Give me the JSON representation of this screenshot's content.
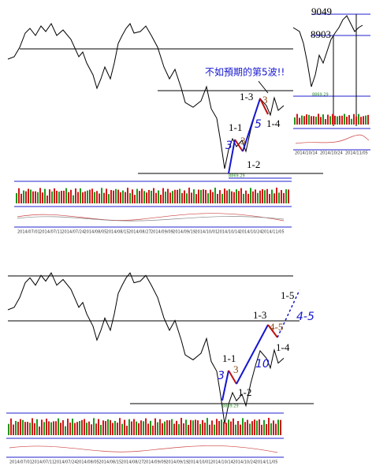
{
  "top_chart": {
    "note": "不如預期的第5波!!",
    "labels": [
      "1-3",
      "3",
      "1-1",
      "3",
      "3",
      "5",
      "1-4",
      "1-2"
    ],
    "low": "8869.29",
    "dates": [
      "2014/07/01",
      "2014/07/11",
      "2014/07/24",
      "2014/08/05",
      "2014/08/15",
      "2014/08/27",
      "2014/09/09",
      "2014/09/19",
      "2014/10/01",
      "2014/10/14",
      "2014/10/24",
      "2014/11/05"
    ]
  },
  "inset": {
    "high": "9049",
    "level": "8903",
    "low": "8869.29",
    "dates": [
      "2014/10/14",
      "2014/10/24",
      "2014/11/05"
    ]
  },
  "bottom_chart": {
    "labels": [
      "1-5",
      "1-3",
      "4-5",
      "4-5",
      "1-1",
      "3",
      "3",
      "10",
      "1-4",
      "1-2"
    ],
    "low": "8869.29",
    "dates": [
      "2014/07/01",
      "2014/07/11",
      "2014/07/24",
      "2014/08/05",
      "2014/08/15",
      "2014/08/27",
      "2014/09/09",
      "2014/09/19",
      "2014/10/01",
      "2014/10/14",
      "2014/10/24",
      "2014/11/05"
    ]
  }
}
